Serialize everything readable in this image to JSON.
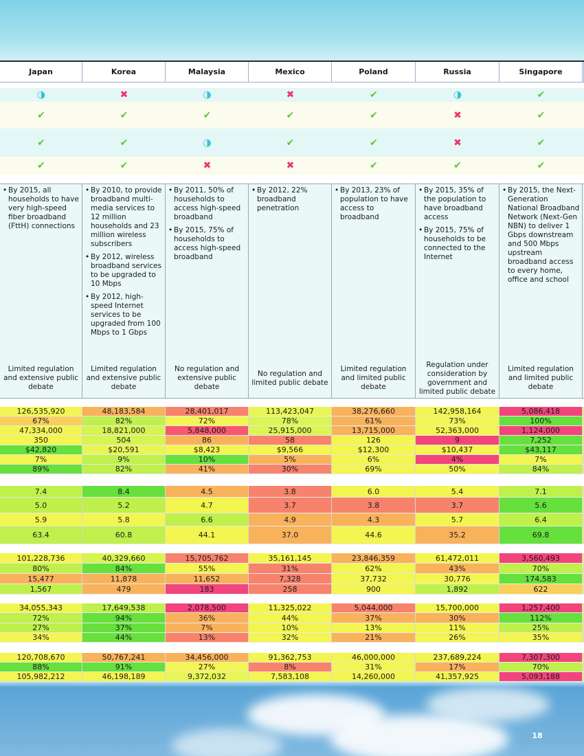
{
  "columns": [
    "Japan",
    "Korea",
    "Malaysia",
    "Mexico",
    "Poland",
    "Russia",
    "Singapore"
  ],
  "status_rows": [
    [
      {
        "symbol": "◑",
        "color": "#35c3d6"
      },
      {
        "symbol": "✖",
        "color": "#f0336b"
      },
      {
        "symbol": "◑",
        "color": "#35c3d6"
      },
      {
        "symbol": "✖",
        "color": "#f0336b"
      },
      {
        "symbol": "✔",
        "color": "#5cc93a"
      },
      {
        "symbol": "◑",
        "color": "#35c3d6"
      },
      {
        "symbol": "✔",
        "color": "#5cc93a"
      }
    ],
    [
      {
        "symbol": "✔",
        "color": "#5cc93a"
      },
      {
        "symbol": "✔",
        "color": "#5cc93a"
      },
      {
        "symbol": "✔",
        "color": "#5cc93a"
      },
      {
        "symbol": "✔",
        "color": "#5cc93a"
      },
      {
        "symbol": "✔",
        "color": "#5cc93a"
      },
      {
        "symbol": "✖",
        "color": "#f0336b"
      },
      {
        "symbol": "✔",
        "color": "#5cc93a"
      }
    ],
    [
      {
        "symbol": "✔",
        "color": "#5cc93a"
      },
      {
        "symbol": "✔",
        "color": "#5cc93a"
      },
      {
        "symbol": "◑",
        "color": "#35c3d6"
      },
      {
        "symbol": "✔",
        "color": "#5cc93a"
      },
      {
        "symbol": "✔",
        "color": "#5cc93a"
      },
      {
        "symbol": "✖",
        "color": "#f0336b"
      },
      {
        "symbol": "✔",
        "color": "#5cc93a"
      }
    ],
    [
      {
        "symbol": "✔",
        "color": "#5cc93a"
      },
      {
        "symbol": "✔",
        "color": "#5cc93a"
      },
      {
        "symbol": "✖",
        "color": "#f0336b"
      },
      {
        "symbol": "✖",
        "color": "#f0336b"
      },
      {
        "symbol": "✔",
        "color": "#5cc93a"
      },
      {
        "symbol": "✔",
        "color": "#5cc93a"
      },
      {
        "symbol": "✔",
        "color": "#5cc93a"
      }
    ]
  ],
  "goals": [
    [
      "By 2015, all households to have very high-speed fiber broadband (FttH) connections"
    ],
    [
      "By 2010, to provide broadband multi-media services to 12 million households and 23 million wireless subscribers",
      "By 2012, wireless broadband services to be upgraded to 10 Mbps",
      "By 2012, high-speed Internet services to be upgraded from 100 Mbps to 1 Gbps"
    ],
    [
      "By 2011, 50% of households to access high-speed broadband",
      "By 2015, 75% of households to access high-speed broadband"
    ],
    [
      "By 2012, 22% broadband penetration"
    ],
    [
      "By 2013, 23% of population to have access to broadband"
    ],
    [
      "By 2015, 35% of the population to have broadband access",
      "By 2015, 75% of households to be connected to the Internet"
    ],
    [
      "By 2015, the Next-Generation National Broadband Network (Next-Gen NBN) to deliver 1 Gbps downstream and 500 Mbps upstream broadband access to every home, office and school"
    ]
  ],
  "regulation": [
    "Limited regulation and extensive public debate",
    "Limited regulation and extensive public debate",
    "No regulation and extensive public debate",
    "No regulation and limited public debate",
    "Limited regulation and limited public debate",
    "Regulation under consideration by government and limited public debate",
    "Limited regulation and limited public debate"
  ],
  "groups": [
    [
      {
        "cells": [
          "126,535,920",
          "48,183,584",
          "28,401,017",
          "113,423,047",
          "38,276,660",
          "142,958,164",
          "5,086,418"
        ],
        "colors": [
          "#f3f550",
          "#f9b25c",
          "#f7836c",
          "#e8f655",
          "#f9b25c",
          "#f3f550",
          "#f2457b"
        ]
      },
      {
        "cells": [
          "67%",
          "82%",
          "72%",
          "78%",
          "61%",
          "73%",
          "100%"
        ],
        "colors": [
          "#f8cf5a",
          "#bff04c",
          "#f3f550",
          "#dcf554",
          "#f9b25c",
          "#f3f550",
          "#66e03d"
        ]
      },
      {
        "cells": [
          "47,334,000",
          "18,821,000",
          "5,848,000",
          "25,915,000",
          "13,715,000",
          "52,363,000",
          "1,124,000"
        ],
        "colors": [
          "#f3f550",
          "#d6f452",
          "#f7586f",
          "#dcf554",
          "#f9b25c",
          "#f3f550",
          "#f2457b"
        ]
      },
      {
        "cells": [
          "350",
          "504",
          "86",
          "58",
          "126",
          "9",
          "7,252"
        ],
        "colors": [
          "#f3f550",
          "#d6f452",
          "#f9b25c",
          "#f7836c",
          "#f3f550",
          "#f2457b",
          "#66e03d"
        ]
      },
      {
        "cells": [
          "$42,820",
          "$20,591",
          "$8,423",
          "$9,566",
          "$12,300",
          "$10,437",
          "$43,117"
        ],
        "colors": [
          "#66e03d",
          "#e8f655",
          "#f3f550",
          "#f3f550",
          "#f3f550",
          "#f3f550",
          "#66e03d"
        ]
      },
      {
        "cells": [
          "7%",
          "9%",
          "10%",
          "5%",
          "6%",
          "4%",
          "7%"
        ],
        "colors": [
          "#f3f550",
          "#bff04c",
          "#66e03d",
          "#f9b25c",
          "#f3f550",
          "#f2457b",
          "#f3f550"
        ]
      },
      {
        "cells": [
          "89%",
          "82%",
          "41%",
          "30%",
          "69%",
          "50%",
          "84%"
        ],
        "colors": [
          "#66e03d",
          "#bff04c",
          "#f9b25c",
          "#f7836c",
          "#f3f550",
          "#f3f550",
          "#bff04c"
        ]
      }
    ],
    [
      {
        "cells": [
          "7.4",
          "8.4",
          "4.5",
          "3.8",
          "6.0",
          "5.4",
          "7.1"
        ],
        "colors": [
          "#bff04c",
          "#66e03d",
          "#f9b25c",
          "#f7836c",
          "#f3f550",
          "#f3f550",
          "#bff04c"
        ]
      },
      {
        "cells": [
          "5.0",
          "5.2",
          "4.7",
          "3.7",
          "3.8",
          "3.7",
          "5.6"
        ],
        "colors": [
          "#bff04c",
          "#bff04c",
          "#f3f550",
          "#f7836c",
          "#f7836c",
          "#f7836c",
          "#66e03d"
        ]
      },
      {
        "cells": [
          "5.9",
          "5.8",
          "6.6",
          "4.9",
          "4.3",
          "5.7",
          "6.4"
        ],
        "colors": [
          "#f3f550",
          "#f3f550",
          "#bff04c",
          "#f9b25c",
          "#f9b25c",
          "#f3f550",
          "#bff04c"
        ]
      },
      {
        "cells": [
          "63.4",
          "60.8",
          "44.1",
          "37.0",
          "44.6",
          "35.2",
          "69.8"
        ],
        "colors": [
          "#bff04c",
          "#bff04c",
          "#f3f550",
          "#f9b25c",
          "#f3f550",
          "#f9b25c",
          "#66e03d"
        ]
      }
    ],
    [
      {
        "cells": [
          "101,228,736",
          "40,329,660",
          "15,705,762",
          "35,161,145",
          "23,846,359",
          "61,472,011",
          "3,560,493"
        ],
        "colors": [
          "#f3f550",
          "#d6f452",
          "#f7836c",
          "#f3f550",
          "#f9b25c",
          "#f3f550",
          "#f2457b"
        ]
      },
      {
        "cells": [
          "80%",
          "84%",
          "55%",
          "31%",
          "62%",
          "43%",
          "70%"
        ],
        "colors": [
          "#bff04c",
          "#66e03d",
          "#f3f550",
          "#f7836c",
          "#f3f550",
          "#f9b25c",
          "#bff04c"
        ]
      },
      {
        "cells": [
          "15,477",
          "11,878",
          "11,652",
          "7,328",
          "37,732",
          "30,776",
          "174,583"
        ],
        "colors": [
          "#f9b25c",
          "#f9b25c",
          "#f9b25c",
          "#f7836c",
          "#f3f550",
          "#f3f550",
          "#66e03d"
        ]
      },
      {
        "cells": [
          "1,567",
          "479",
          "183",
          "258",
          "900",
          "1,892",
          "622"
        ],
        "colors": [
          "#bff04c",
          "#f9b25c",
          "#f2457b",
          "#f7836c",
          "#f3f550",
          "#bff04c",
          "#f8cf5a"
        ]
      }
    ],
    [
      {
        "cells": [
          "34,055,343",
          "17,649,538",
          "2,078,500",
          "11,325,022",
          "5,044,000",
          "15,700,000",
          "1,257,400"
        ],
        "colors": [
          "#f3f550",
          "#bff04c",
          "#f2457b",
          "#f3f550",
          "#f7836c",
          "#f3f550",
          "#f2457b"
        ]
      },
      {
        "cells": [
          "72%",
          "94%",
          "36%",
          "44%",
          "37%",
          "30%",
          "112%"
        ],
        "colors": [
          "#bff04c",
          "#66e03d",
          "#f9b25c",
          "#f3f550",
          "#f9b25c",
          "#f9b25c",
          "#66e03d"
        ]
      },
      {
        "cells": [
          "27%",
          "37%",
          "7%",
          "10%",
          "13%",
          "11%",
          "25%"
        ],
        "colors": [
          "#bff04c",
          "#66e03d",
          "#f9b25c",
          "#f3f550",
          "#f3f550",
          "#f3f550",
          "#bff04c"
        ]
      },
      {
        "cells": [
          "34%",
          "44%",
          "13%",
          "32%",
          "21%",
          "26%",
          "35%"
        ],
        "colors": [
          "#f3f550",
          "#66e03d",
          "#f7836c",
          "#f3f550",
          "#f9b25c",
          "#f3f550",
          "#f3f550"
        ]
      }
    ],
    [
      {
        "cells": [
          "120,708,670",
          "50,767,241",
          "34,456,000",
          "91,362,753",
          "46,000,000",
          "237,689,224",
          "7,307,300"
        ],
        "colors": [
          "#f3f550",
          "#f9b25c",
          "#f9b25c",
          "#f3f550",
          "#f3f550",
          "#f3f550",
          "#f2457b"
        ]
      },
      {
        "cells": [
          "88%",
          "91%",
          "27%",
          "8%",
          "31%",
          "17%",
          "70%"
        ],
        "colors": [
          "#66e03d",
          "#66e03d",
          "#f3f550",
          "#f7836c",
          "#f3f550",
          "#f9b25c",
          "#bff04c"
        ]
      },
      {
        "cells": [
          "105,982,212",
          "46,198,189",
          "9,372,032",
          "7,583,108",
          "14,260,000",
          "41,357,925",
          "5,093,188"
        ],
        "colors": [
          "#f3f550",
          "#f3f550",
          "#e8f655",
          "#f3f550",
          "#f3f550",
          "#f3f550",
          "#f2457b"
        ]
      }
    ]
  ],
  "page_number": "18"
}
